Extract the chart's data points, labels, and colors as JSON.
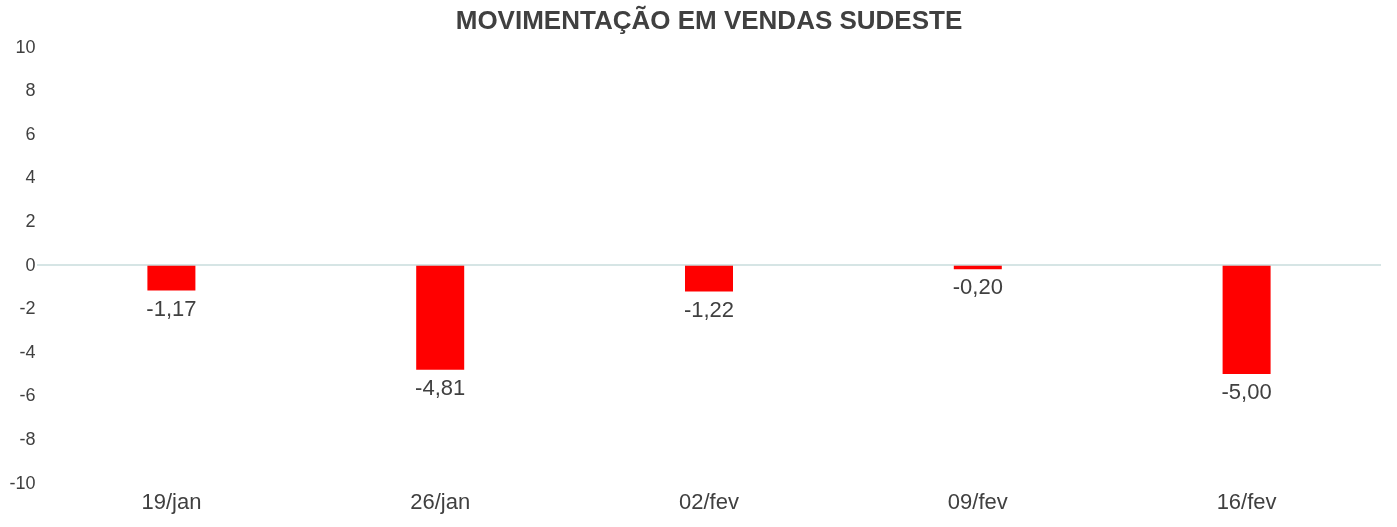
{
  "chart_data": {
    "type": "bar",
    "title": "MOVIMENTAÇÃO EM VENDAS SUDESTE",
    "categories": [
      "19/jan",
      "26/jan",
      "02/fev",
      "09/fev",
      "16/fev"
    ],
    "series": [
      {
        "color": "#ff0000",
        "values": [
          -1.17,
          -4.81,
          -1.22,
          -0.2,
          -5.0
        ]
      }
    ],
    "ylim": [
      -10,
      10
    ],
    "yticks": [
      -10,
      -8,
      -6,
      -4,
      -2,
      0,
      2,
      4,
      6,
      8,
      10
    ],
    "value_labels": [
      "-1,17",
      "-4,81",
      "-1,22",
      "-0,20",
      "-5,00"
    ],
    "ref_lines": [
      {
        "axis": "y",
        "value": 0,
        "color": "#c9dcdc"
      }
    ],
    "grid": false
  }
}
